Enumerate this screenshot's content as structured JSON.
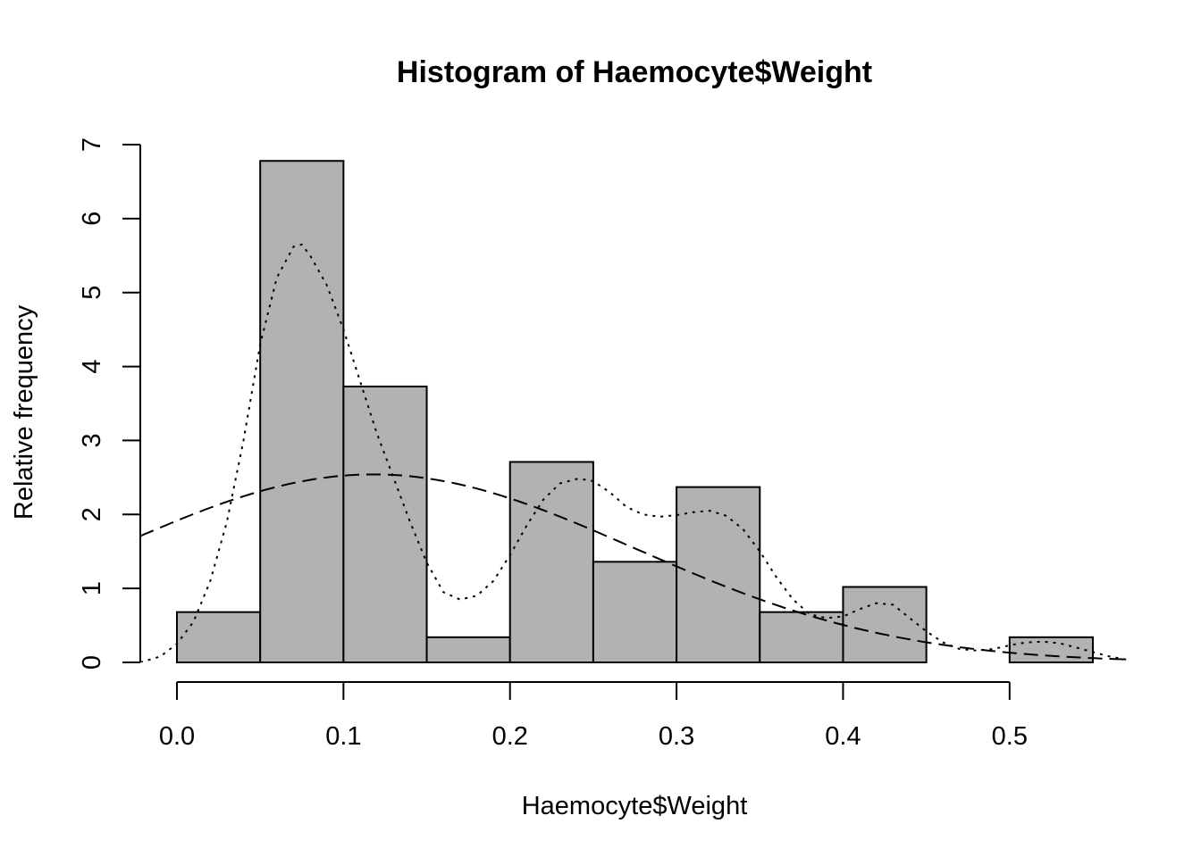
{
  "chart_data": {
    "type": "bar",
    "title": "Histogram of Haemocyte$Weight",
    "xlabel": "Haemocyte$Weight",
    "ylabel": "Relative frequency",
    "xlim": [
      -0.022,
      0.572
    ],
    "ylim": [
      0,
      7
    ],
    "x_ticks": [
      "0.0",
      "0.1",
      "0.2",
      "0.3",
      "0.4",
      "0.5"
    ],
    "y_ticks": [
      "0",
      "1",
      "2",
      "3",
      "4",
      "5",
      "6",
      "7"
    ],
    "bins": [
      {
        "x0": 0.0,
        "x1": 0.05,
        "value": 0.68
      },
      {
        "x0": 0.05,
        "x1": 0.1,
        "value": 6.78
      },
      {
        "x0": 0.1,
        "x1": 0.15,
        "value": 3.73
      },
      {
        "x0": 0.15,
        "x1": 0.2,
        "value": 0.34
      },
      {
        "x0": 0.2,
        "x1": 0.25,
        "value": 2.71
      },
      {
        "x0": 0.25,
        "x1": 0.3,
        "value": 1.36
      },
      {
        "x0": 0.3,
        "x1": 0.35,
        "value": 2.37
      },
      {
        "x0": 0.35,
        "x1": 0.4,
        "value": 0.68
      },
      {
        "x0": 0.4,
        "x1": 0.45,
        "value": 1.02
      },
      {
        "x0": 0.45,
        "x1": 0.5,
        "value": 0
      },
      {
        "x0": 0.5,
        "x1": 0.55,
        "value": 0.34
      }
    ],
    "density_curve": {
      "style": "dotted",
      "x": [
        -0.022,
        -0.01,
        0.0,
        0.01,
        0.02,
        0.03,
        0.04,
        0.05,
        0.06,
        0.07,
        0.075,
        0.08,
        0.09,
        0.1,
        0.11,
        0.12,
        0.13,
        0.14,
        0.15,
        0.16,
        0.17,
        0.18,
        0.19,
        0.2,
        0.21,
        0.22,
        0.23,
        0.24,
        0.245,
        0.25,
        0.26,
        0.27,
        0.28,
        0.29,
        0.3,
        0.31,
        0.32,
        0.33,
        0.34,
        0.35,
        0.36,
        0.37,
        0.38,
        0.39,
        0.4,
        0.41,
        0.42,
        0.43,
        0.44,
        0.45,
        0.46,
        0.47,
        0.48,
        0.49,
        0.5,
        0.51,
        0.52,
        0.53,
        0.54,
        0.55,
        0.56,
        0.572
      ],
      "y": [
        0.0,
        0.08,
        0.25,
        0.55,
        1.1,
        1.9,
        3.0,
        4.3,
        5.2,
        5.62,
        5.65,
        5.5,
        5.1,
        4.5,
        3.8,
        3.1,
        2.5,
        1.9,
        1.35,
        0.95,
        0.85,
        0.9,
        1.1,
        1.45,
        1.85,
        2.2,
        2.42,
        2.48,
        2.47,
        2.45,
        2.3,
        2.1,
        2.0,
        1.97,
        1.99,
        2.03,
        2.05,
        1.98,
        1.8,
        1.5,
        1.15,
        0.85,
        0.65,
        0.6,
        0.62,
        0.72,
        0.8,
        0.78,
        0.6,
        0.42,
        0.27,
        0.18,
        0.16,
        0.18,
        0.23,
        0.27,
        0.28,
        0.26,
        0.2,
        0.14,
        0.08,
        0.03
      ]
    },
    "normal_curve": {
      "style": "dashed",
      "mean": 0.118,
      "sd": 0.157
    }
  }
}
